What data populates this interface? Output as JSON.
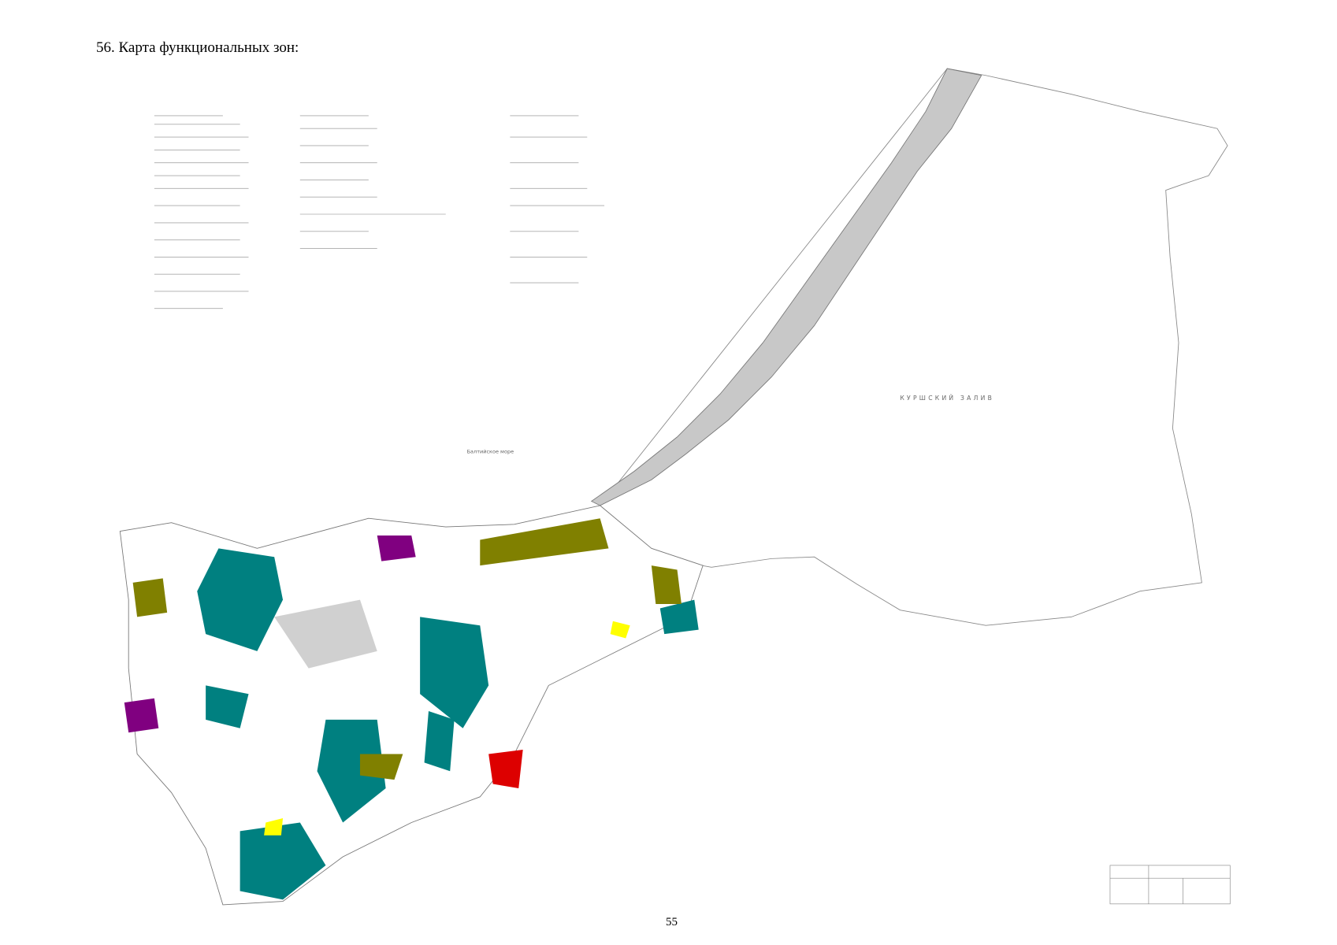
{
  "header": {
    "title": "56. Карта функциональных зон:"
  },
  "map": {
    "labels": [
      "КУРШСКИЙ ЗАЛИВ",
      "Балтийское море"
    ]
  },
  "footer": {
    "page_number": "55"
  }
}
